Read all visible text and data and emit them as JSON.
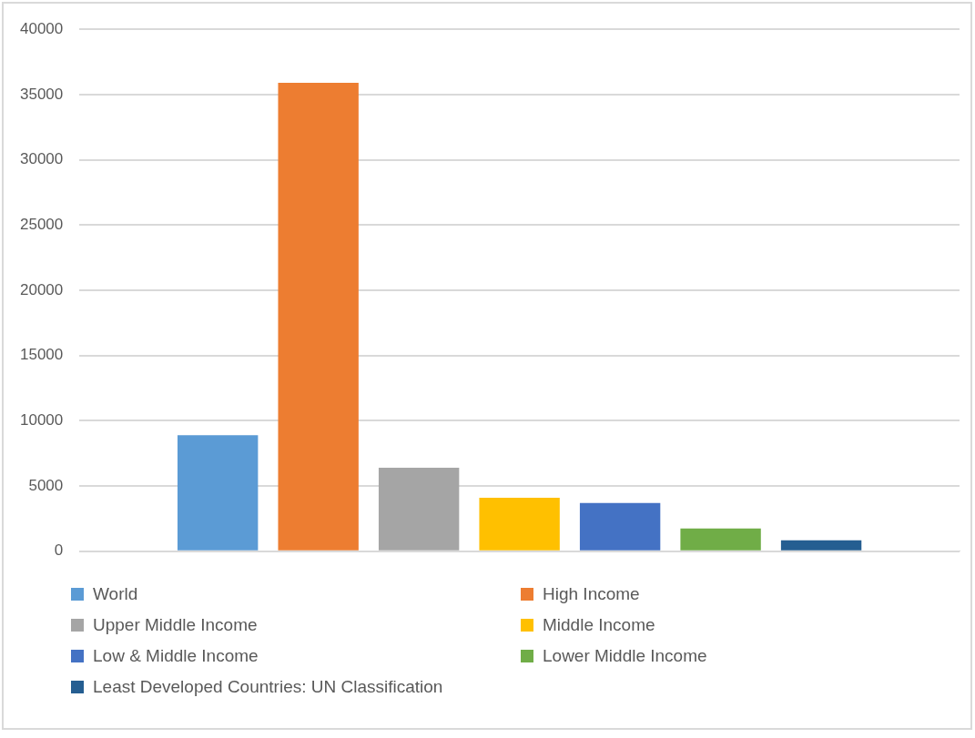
{
  "chart_data": {
    "type": "bar",
    "categories": [
      null
    ],
    "series": [
      {
        "name": "World",
        "color": "#5b9bd5",
        "values": [
          8900
        ]
      },
      {
        "name": "High Income",
        "color": "#ed7d31",
        "values": [
          35900
        ]
      },
      {
        "name": "Upper Middle Income",
        "color": "#a5a5a5",
        "values": [
          6400
        ]
      },
      {
        "name": "Middle Income",
        "color": "#ffc000",
        "values": [
          4100
        ]
      },
      {
        "name": "Low & Middle Income",
        "color": "#4472c4",
        "values": [
          3700
        ]
      },
      {
        "name": "Lower Middle Income",
        "color": "#70ad47",
        "values": [
          1750
        ]
      },
      {
        "name": "Least Developed Countries: UN Classification",
        "color": "#255e91",
        "values": [
          840
        ]
      }
    ],
    "ylim": [
      0,
      40000
    ],
    "yticks": [
      0,
      5000,
      10000,
      15000,
      20000,
      25000,
      30000,
      35000,
      40000
    ],
    "grid": "y",
    "legend": "bottom"
  }
}
